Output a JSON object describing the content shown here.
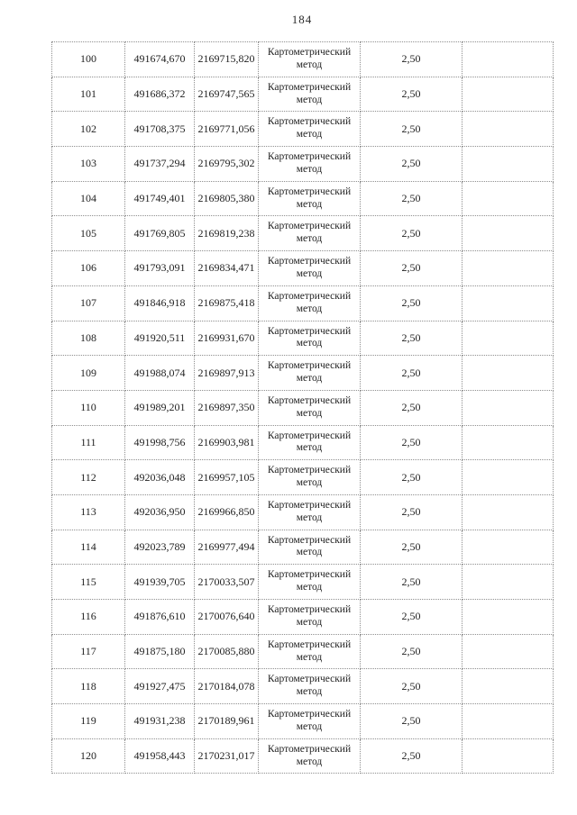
{
  "page": {
    "number": "184"
  },
  "table": {
    "rows": [
      {
        "n": "100",
        "x": "491674,670",
        "y": "2169715,820",
        "method": "Картометрический метод",
        "accuracy": "2,50",
        "note": ""
      },
      {
        "n": "101",
        "x": "491686,372",
        "y": "2169747,565",
        "method": "Картометрический метод",
        "accuracy": "2,50",
        "note": ""
      },
      {
        "n": "102",
        "x": "491708,375",
        "y": "2169771,056",
        "method": "Картометрический метод",
        "accuracy": "2,50",
        "note": ""
      },
      {
        "n": "103",
        "x": "491737,294",
        "y": "2169795,302",
        "method": "Картометрический метод",
        "accuracy": "2,50",
        "note": ""
      },
      {
        "n": "104",
        "x": "491749,401",
        "y": "2169805,380",
        "method": "Картометрический метод",
        "accuracy": "2,50",
        "note": ""
      },
      {
        "n": "105",
        "x": "491769,805",
        "y": "2169819,238",
        "method": "Картометрический метод",
        "accuracy": "2,50",
        "note": ""
      },
      {
        "n": "106",
        "x": "491793,091",
        "y": "2169834,471",
        "method": "Картометрический метод",
        "accuracy": "2,50",
        "note": ""
      },
      {
        "n": "107",
        "x": "491846,918",
        "y": "2169875,418",
        "method": "Картометрический метод",
        "accuracy": "2,50",
        "note": ""
      },
      {
        "n": "108",
        "x": "491920,511",
        "y": "2169931,670",
        "method": "Картометрический метод",
        "accuracy": "2,50",
        "note": ""
      },
      {
        "n": "109",
        "x": "491988,074",
        "y": "2169897,913",
        "method": "Картометрический метод",
        "accuracy": "2,50",
        "note": ""
      },
      {
        "n": "110",
        "x": "491989,201",
        "y": "2169897,350",
        "method": "Картометрический метод",
        "accuracy": "2,50",
        "note": ""
      },
      {
        "n": "111",
        "x": "491998,756",
        "y": "2169903,981",
        "method": "Картометрический метод",
        "accuracy": "2,50",
        "note": ""
      },
      {
        "n": "112",
        "x": "492036,048",
        "y": "2169957,105",
        "method": "Картометрический метод",
        "accuracy": "2,50",
        "note": ""
      },
      {
        "n": "113",
        "x": "492036,950",
        "y": "2169966,850",
        "method": "Картометрический метод",
        "accuracy": "2,50",
        "note": ""
      },
      {
        "n": "114",
        "x": "492023,789",
        "y": "2169977,494",
        "method": "Картометрический метод",
        "accuracy": "2,50",
        "note": ""
      },
      {
        "n": "115",
        "x": "491939,705",
        "y": "2170033,507",
        "method": "Картометрический метод",
        "accuracy": "2,50",
        "note": ""
      },
      {
        "n": "116",
        "x": "491876,610",
        "y": "2170076,640",
        "method": "Картометрический метод",
        "accuracy": "2,50",
        "note": ""
      },
      {
        "n": "117",
        "x": "491875,180",
        "y": "2170085,880",
        "method": "Картометрический метод",
        "accuracy": "2,50",
        "note": ""
      },
      {
        "n": "118",
        "x": "491927,475",
        "y": "2170184,078",
        "method": "Картометрический метод",
        "accuracy": "2,50",
        "note": ""
      },
      {
        "n": "119",
        "x": "491931,238",
        "y": "2170189,961",
        "method": "Картометрический метод",
        "accuracy": "2,50",
        "note": ""
      },
      {
        "n": "120",
        "x": "491958,443",
        "y": "2170231,017",
        "method": "Картометрический метод",
        "accuracy": "2,50",
        "note": ""
      }
    ]
  }
}
